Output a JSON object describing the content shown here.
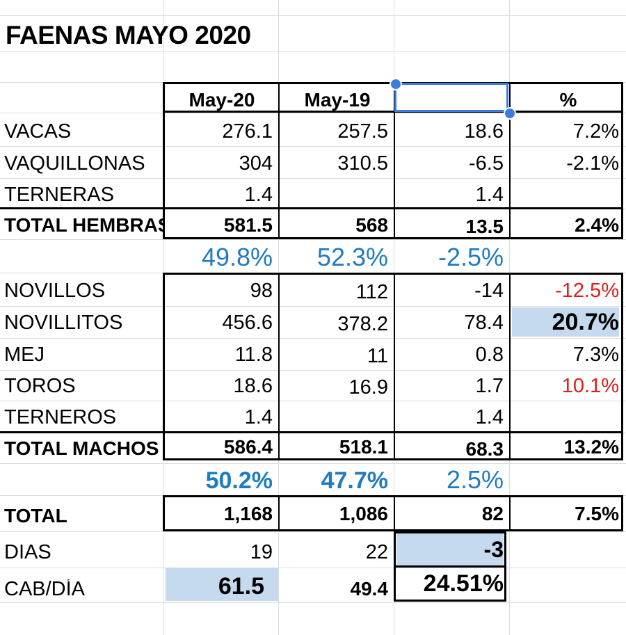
{
  "title": "FAENAS MAYO 2020",
  "headers": {
    "col1": "May-20",
    "col2": "May-19",
    "col3": "",
    "col4": "%"
  },
  "hembras": [
    {
      "label": "VACAS",
      "may20": "276.1",
      "may19": "257.5",
      "diff": "18.6",
      "pct": "7.2%"
    },
    {
      "label": "VAQUILLONAS",
      "may20": "304",
      "may19": "310.5",
      "diff": "-6.5",
      "pct": "-2.1%"
    },
    {
      "label": "TERNERAS",
      "may20": "1.4",
      "may19": "",
      "diff": "1.4",
      "pct": ""
    }
  ],
  "total_hembras": {
    "label": "TOTAL HEMBRAS",
    "may20": "581.5",
    "may19": "568",
    "diff": "13.5",
    "pct": "2.4%"
  },
  "share_hembras": {
    "may20": "49.8%",
    "may19": "52.3%",
    "diff": "-2.5%"
  },
  "machos": [
    {
      "label": "NOVILLOS",
      "may20": "98",
      "may19": "112",
      "diff": "-14",
      "pct": "-12.5%"
    },
    {
      "label": "NOVILLITOS",
      "may20": "456.6",
      "may19": "378.2",
      "diff": "78.4",
      "pct": "20.7%"
    },
    {
      "label": "MEJ",
      "may20": "11.8",
      "may19": "11",
      "diff": "0.8",
      "pct": "7.3%"
    },
    {
      "label": "TOROS",
      "may20": "18.6",
      "may19": "16.9",
      "diff": "1.7",
      "pct": "10.1%"
    },
    {
      "label": "TERNEROS",
      "may20": "1.4",
      "may19": "",
      "diff": "1.4",
      "pct": ""
    }
  ],
  "total_machos": {
    "label": "TOTAL MACHOS",
    "may20": "586.4",
    "may19": "518.1",
    "diff": "68.3",
    "pct": "13.2%"
  },
  "share_machos": {
    "may20": "50.2%",
    "may19": "47.7%",
    "diff": "2.5%"
  },
  "total": {
    "label": "TOTAL",
    "may20": "1,168",
    "may19": "1,086",
    "diff": "82",
    "pct": "7.5%"
  },
  "dias": {
    "label": "DIAS",
    "may20": "19",
    "may19": "22",
    "diff": "-3"
  },
  "cab_dia": {
    "label": "CAB/DÍA",
    "may20": "61.5",
    "may19": "49.4",
    "diff": "24.51%"
  },
  "colors": {
    "accent_blue": "#1f7bc1",
    "negative_red": "#e01b1b",
    "highlight_fill": "#c5d9ef",
    "selection": "#3b7de0"
  }
}
